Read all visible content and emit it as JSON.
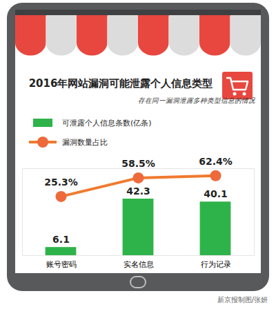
{
  "chart_data": {
    "type": "bar",
    "title": "2016年网站漏洞可能泄露个人信息类型",
    "subtitle": "存在同一漏洞泄露多种类型信息的情况",
    "credit": "新京报制图/张妍",
    "categories": [
      "账号密码",
      "实名信息",
      "行为记录"
    ],
    "series": [
      {
        "name": "可泄露个人信息条数(亿条)",
        "type": "bar",
        "color": "#2eb34a",
        "values": [
          6.1,
          42.3,
          40.1
        ]
      },
      {
        "name": "漏洞数量占比",
        "type": "line",
        "color": "#f07a2e",
        "marker": "circle",
        "axis": "y2",
        "values": [
          25.3,
          58.5,
          62.4
        ],
        "value_labels": [
          "25.3%",
          "58.5%",
          "62.4%"
        ]
      }
    ],
    "ylim": [
      0,
      65
    ],
    "y2lim": [
      -80,
      75
    ],
    "data_labels": true,
    "tick_labels": "x",
    "legend": "top"
  }
}
